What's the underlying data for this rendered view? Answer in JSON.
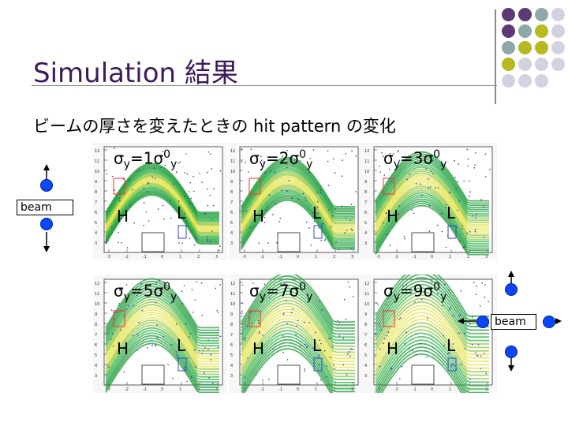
{
  "slide": {
    "title": "Simulation 結果",
    "subtitle": "ビームの厚さを変えたときの hit pattern の変化"
  },
  "panels": [
    {
      "sigma_prefix": "σ",
      "sigma_sub": "y",
      "sigma_mult": "=1σ",
      "sigma_sup": "0",
      "sigma_sub2": "y",
      "h_label": "H",
      "l_label": "L"
    },
    {
      "sigma_prefix": "σ",
      "sigma_sub": "y",
      "sigma_mult": "=2σ",
      "sigma_sup": "0",
      "sigma_sub2": "y",
      "h_label": "H",
      "l_label": "L"
    },
    {
      "sigma_prefix": "σ",
      "sigma_sub": "y",
      "sigma_mult": "=3σ",
      "sigma_sup": "0",
      "sigma_sub2": "y",
      "h_label": "H",
      "l_label": "L"
    },
    {
      "sigma_prefix": "σ",
      "sigma_sub": "y",
      "sigma_mult": "=5σ",
      "sigma_sup": "0",
      "sigma_sub2": "y",
      "h_label": "H",
      "l_label": "L"
    },
    {
      "sigma_prefix": "σ",
      "sigma_sub": "y",
      "sigma_mult": "=7σ",
      "sigma_sup": "0",
      "sigma_sub2": "y",
      "h_label": "H",
      "l_label": "L"
    },
    {
      "sigma_prefix": "σ",
      "sigma_sub": "y",
      "sigma_mult": "=9σ",
      "sigma_sup": "0",
      "sigma_sub2": "y",
      "h_label": "H",
      "l_label": "L"
    }
  ],
  "beam_left": {
    "label": "beam"
  },
  "beam_right": {
    "label": "beam"
  },
  "colors": {
    "title": "#3c1a5b",
    "dot_purple": "#5c3a73",
    "dot_teal": "#8ea7a8",
    "dot_olive": "#b8b820",
    "dot_light": "#d3d2e0",
    "ball_blue": "#0a46ff"
  }
}
